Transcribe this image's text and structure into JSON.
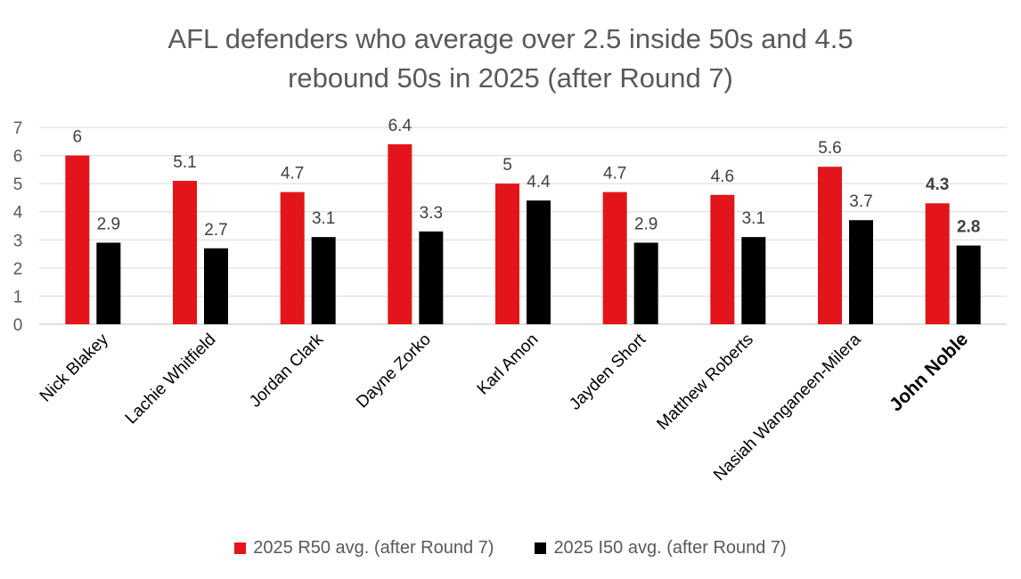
{
  "chart_data": {
    "type": "bar",
    "title_lines": [
      "AFL defenders who average over 2.5 inside 50s and 4.5",
      "rebound 50s in 2025 (after Round 7)"
    ],
    "categories": [
      "Nick Blakey",
      "Lachie Whitfield",
      "Jordan Clark",
      "Dayne Zorko",
      "Karl Amon",
      "Jayden Short",
      "Matthew Roberts",
      "Nasiah Wanganeen-Milera",
      "John Noble"
    ],
    "highlight_category": "John Noble",
    "series": [
      {
        "name": "2025 R50 avg. (after Round 7)",
        "color": "#e3151a",
        "values": [
          6,
          5.1,
          4.7,
          6.4,
          5,
          4.7,
          4.6,
          5.6,
          4.3
        ],
        "labels": [
          "6",
          "5.1",
          "4.7",
          "6.4",
          "5",
          "4.7",
          "4.6",
          "5.6",
          "4.3"
        ]
      },
      {
        "name": "2025 I50 avg. (after Round 7)",
        "color": "#000000",
        "values": [
          2.9,
          2.7,
          3.1,
          3.3,
          4.4,
          2.9,
          3.1,
          3.7,
          2.8
        ],
        "labels": [
          "2.9",
          "2.7",
          "3.1",
          "3.3",
          "4.4",
          "2.9",
          "3.1",
          "3.7",
          "2.8"
        ]
      }
    ],
    "ylim": [
      0,
      7
    ],
    "yticks": [
      "0",
      "1",
      "2",
      "3",
      "4",
      "5",
      "6",
      "7"
    ],
    "grid": true,
    "legend_position": "bottom"
  }
}
